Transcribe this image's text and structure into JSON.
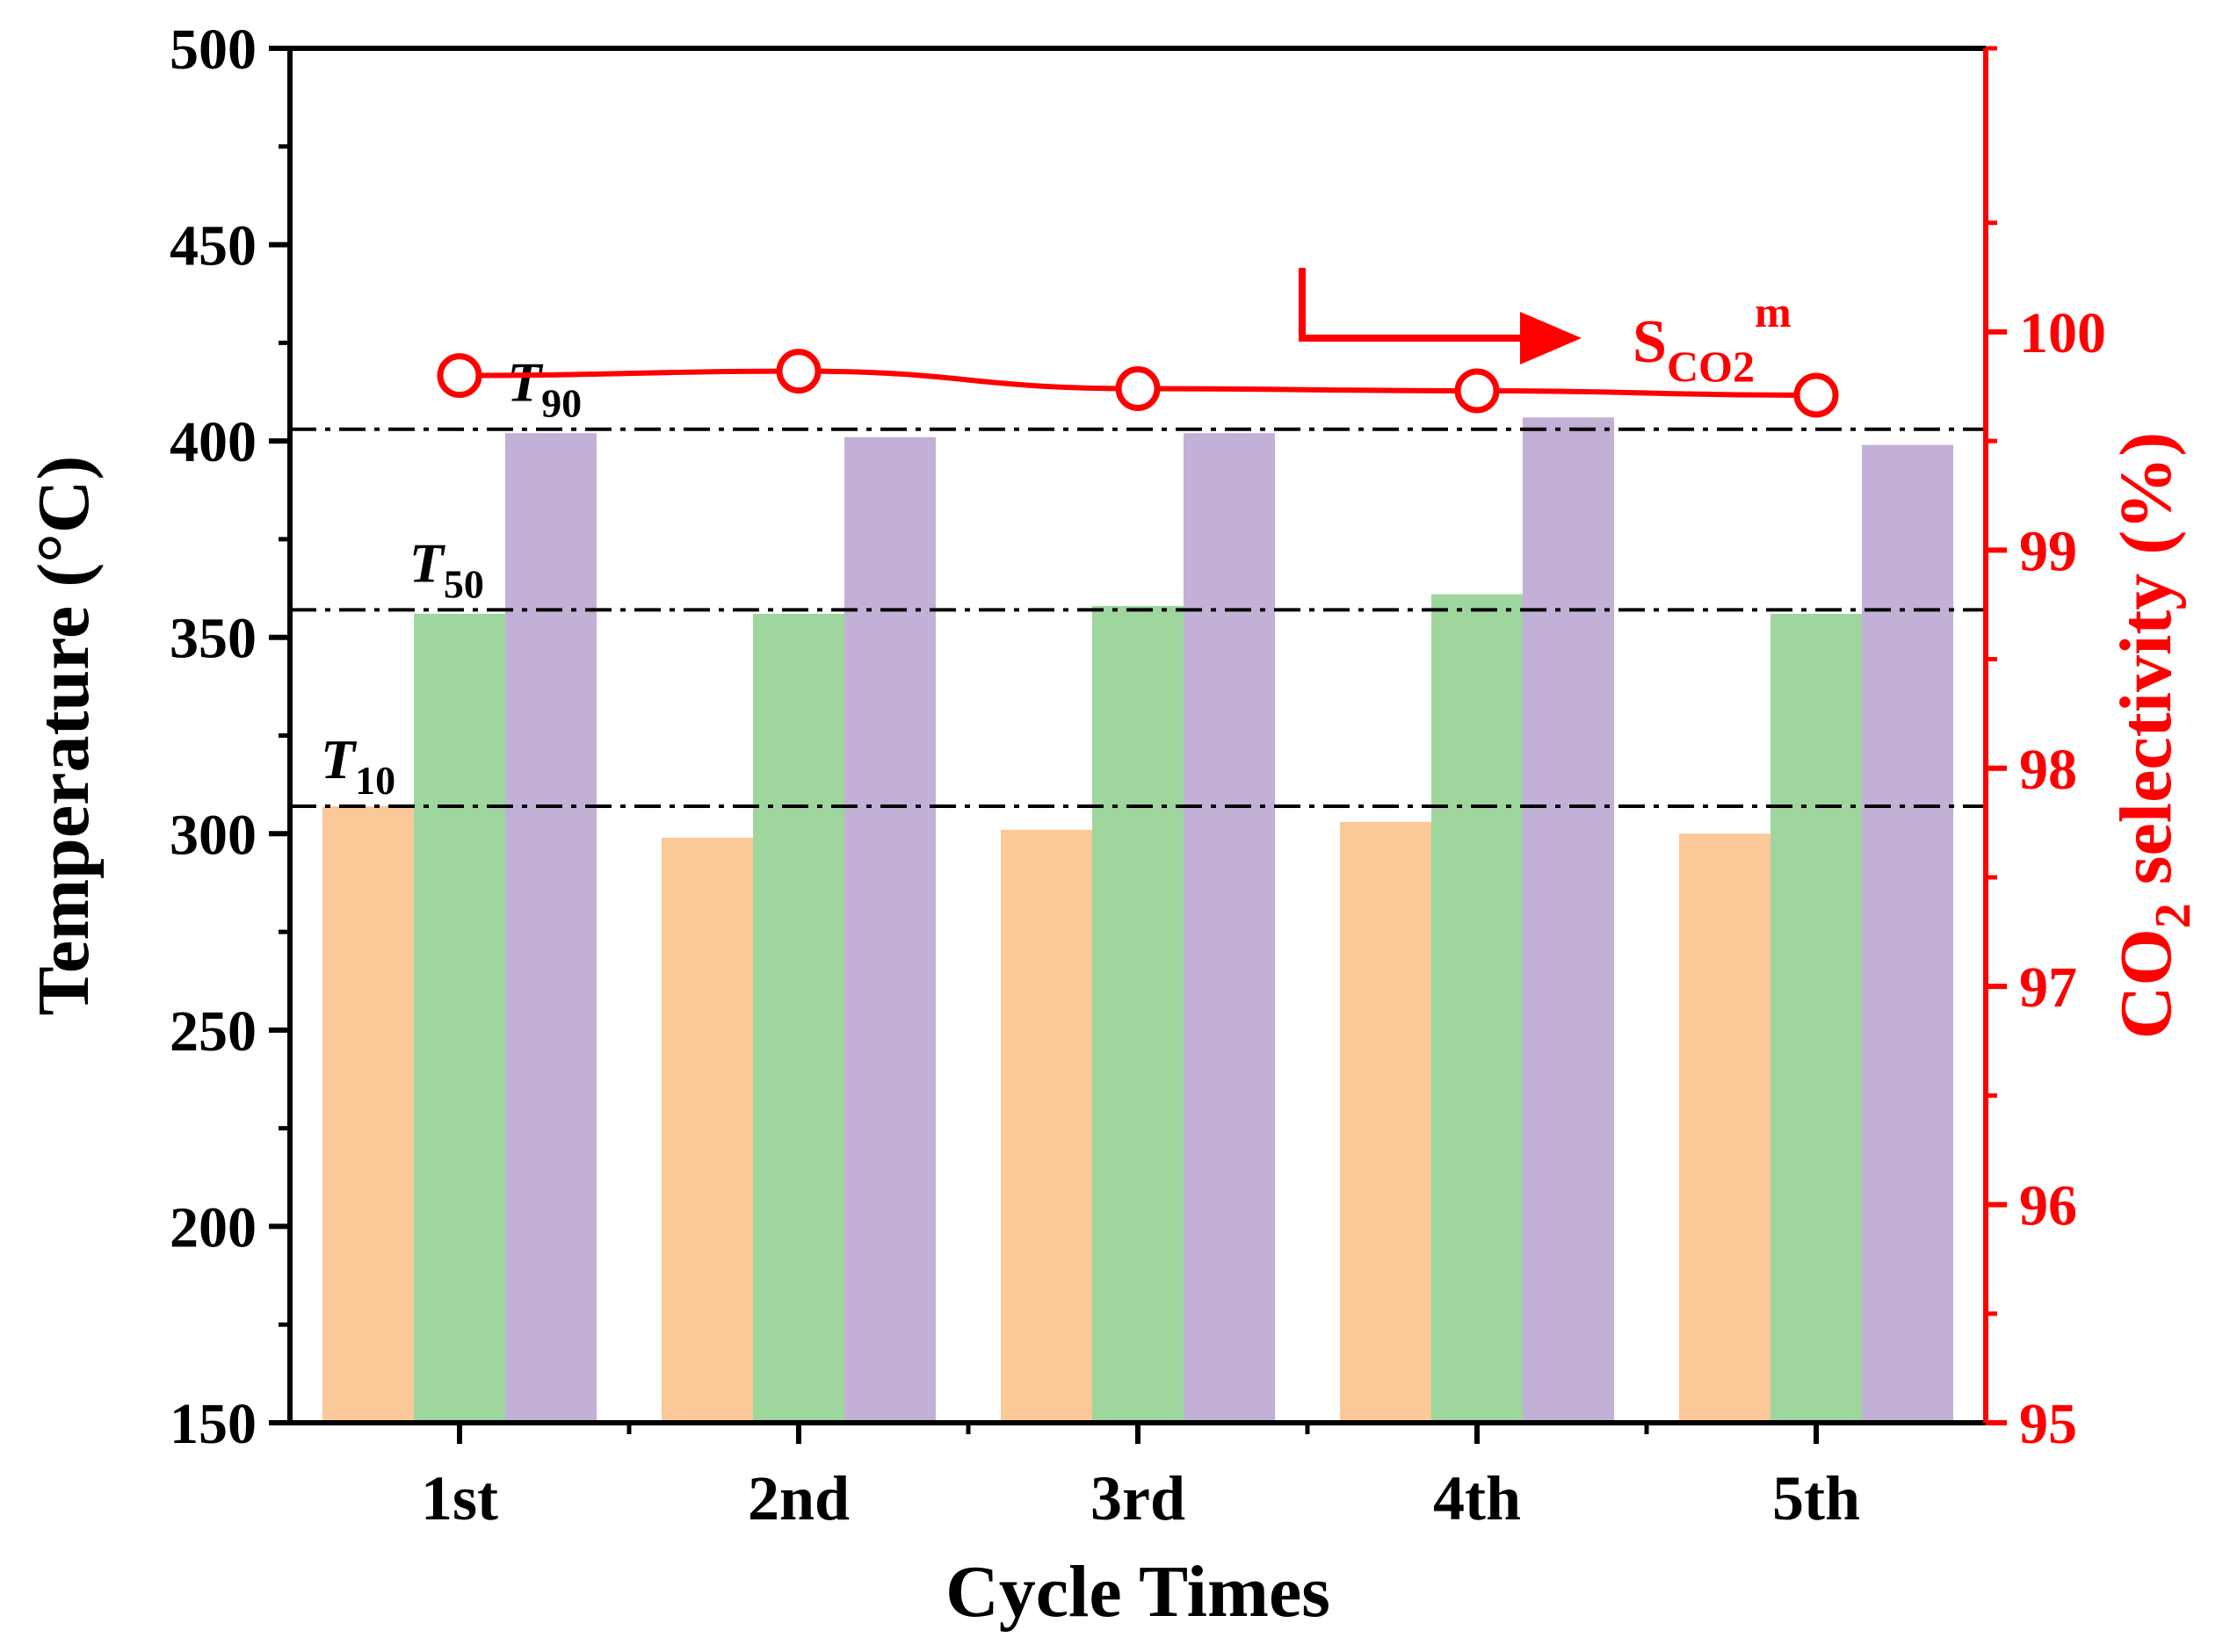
{
  "chart_data": {
    "type": "bar",
    "title": "",
    "xlabel": "Cycle Times",
    "ylabel": "Temperature (°C)",
    "y2label": {
      "main": "CO",
      "sub": "2",
      "rest": " selectivity (%)"
    },
    "categories": [
      "1st",
      "2nd",
      "3rd",
      "4th",
      "5th"
    ],
    "ylim": [
      150,
      500
    ],
    "yticks": [
      "150",
      "200",
      "250",
      "300",
      "350",
      "400",
      "450",
      "500"
    ],
    "y2lim": [
      95,
      101.3
    ],
    "y2ticks": [
      "95",
      "96",
      "97",
      "98",
      "99",
      "100"
    ],
    "series": [
      {
        "name": "T10",
        "color": "#FBC898",
        "values": [
          307,
          299,
          301,
          303,
          300
        ]
      },
      {
        "name": "T50",
        "color": "#9ED69E",
        "values": [
          356,
          356,
          358,
          361,
          356
        ]
      },
      {
        "name": "T90",
        "color": "#C2B0D7",
        "values": [
          402,
          401,
          402,
          406,
          399
        ]
      }
    ],
    "line_series": {
      "name": "SCO2m",
      "color": "#FF0000",
      "axis": "right",
      "values": [
        99.8,
        99.82,
        99.74,
        99.73,
        99.71
      ]
    },
    "reference_lines": [
      {
        "label_main": "T",
        "label_sub": "10",
        "value": 307
      },
      {
        "label_main": "T",
        "label_sub": "50",
        "value": 357
      },
      {
        "label_main": "T",
        "label_sub": "90",
        "value": 403
      }
    ],
    "annotation": {
      "main": "S",
      "sub": "CO2",
      "sup": "m"
    }
  }
}
